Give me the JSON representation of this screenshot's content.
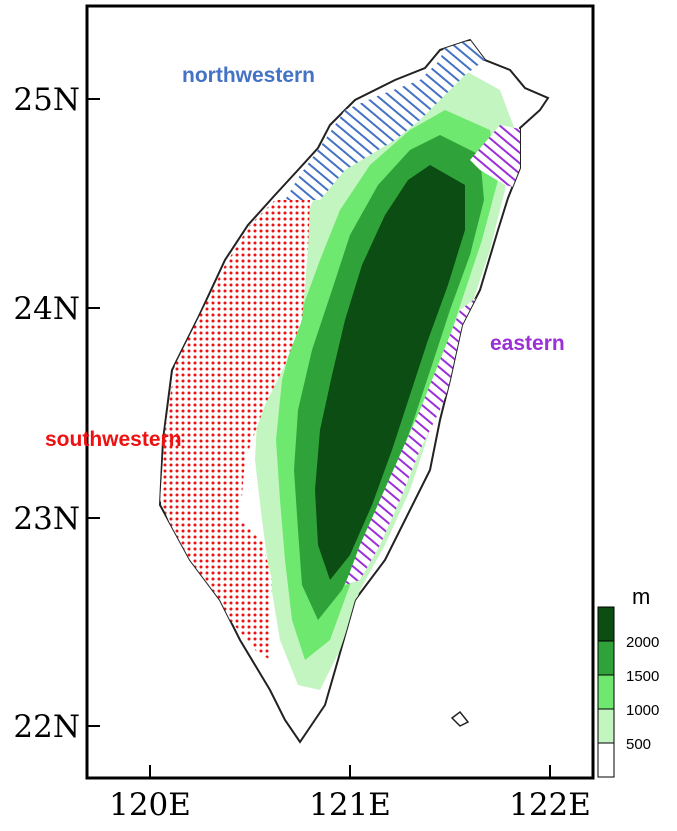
{
  "map": {
    "axes": {
      "x_ticks": [
        "120E",
        "121E",
        "122E"
      ],
      "y_ticks": [
        "25N",
        "24N",
        "23N",
        "22N"
      ]
    },
    "regions": [
      {
        "label": "northwestern",
        "color": "#4472c4",
        "pattern": "hatch"
      },
      {
        "label": "eastern",
        "color": "#9b30d9",
        "pattern": "hatch"
      },
      {
        "label": "southwestern",
        "color": "#ee1111",
        "pattern": "dots"
      }
    ],
    "legend": {
      "unit": "m",
      "levels": [
        {
          "label": "2000",
          "color": "#0b4d12"
        },
        {
          "label": "1500",
          "color": "#2fa33a"
        },
        {
          "label": "1000",
          "color": "#6ee86e"
        },
        {
          "label": "500",
          "color": "#c3f5c0"
        },
        {
          "label": "",
          "color": "#ffffff"
        }
      ]
    }
  }
}
